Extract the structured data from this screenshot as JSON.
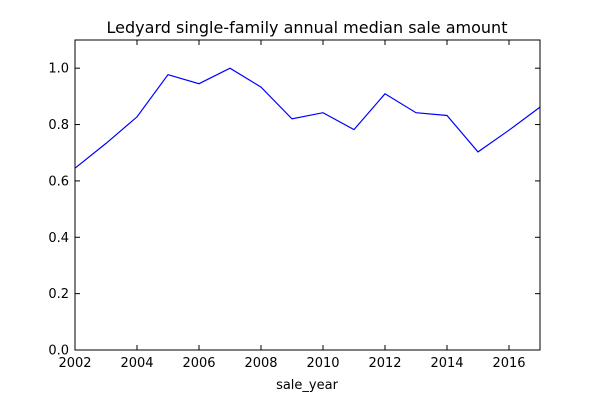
{
  "chart_data": {
    "type": "line",
    "title": "Ledyard single-family annual median sale amount",
    "xlabel": "sale_year",
    "ylabel": "",
    "xlim": [
      2002,
      2017
    ],
    "ylim": [
      0,
      1.1
    ],
    "xticks": [
      2002,
      2004,
      2006,
      2008,
      2010,
      2012,
      2014,
      2016
    ],
    "xtick_labels": [
      "2002",
      "2004",
      "2006",
      "2008",
      "2010",
      "2012",
      "2014",
      "2016"
    ],
    "yticks": [
      0.0,
      0.2,
      0.4,
      0.6,
      0.8,
      1.0
    ],
    "ytick_labels": [
      "0.0",
      "0.2",
      "0.4",
      "0.6",
      "0.8",
      "1.0"
    ],
    "grid": false,
    "legend": "none",
    "series": [
      {
        "color": "#0000ff",
        "x": [
          2002,
          2003,
          2004,
          2005,
          2006,
          2007,
          2008,
          2009,
          2010,
          2011,
          2012,
          2013,
          2014,
          2015,
          2016,
          2017
        ],
        "y": [
          0.645,
          0.733,
          0.827,
          0.977,
          0.945,
          1.0,
          0.933,
          0.82,
          0.842,
          0.782,
          0.909,
          0.842,
          0.832,
          0.703,
          0.78,
          0.862
        ]
      }
    ]
  }
}
